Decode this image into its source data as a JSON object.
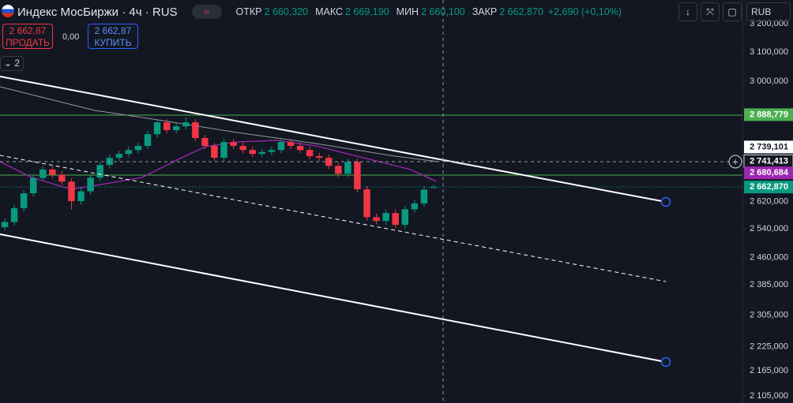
{
  "header": {
    "symbol": "Индекс МосБиржи · 4ч · RUS",
    "ohlc": [
      {
        "label": "ОТКР",
        "value": "2 660,320"
      },
      {
        "label": "МАКС",
        "value": "2 669,190"
      },
      {
        "label": "МИН",
        "value": "2 660,100"
      },
      {
        "label": "ЗАКР",
        "value": "2 662,870"
      }
    ],
    "change": "+2,690 (+0,10%)",
    "currency": "RUB"
  },
  "trade": {
    "sell_price": "2 662,87",
    "sell_label": "ПРОДАТЬ",
    "spread": "0,00",
    "buy_price": "2 662,87",
    "buy_label": "КУПИТЬ"
  },
  "indicators": "2",
  "chart_data": {
    "type": "candlestick",
    "log_scale": true,
    "up_color": "#089981",
    "down_color": "#f23645",
    "ylim": [
      2088,
      3287
    ],
    "yticks": [
      {
        "value": 3200,
        "label": "3 200,000"
      },
      {
        "value": 3100,
        "label": "3 100,000"
      },
      {
        "value": 3000,
        "label": "3 000,000"
      },
      {
        "value": 2620,
        "label": "2 620,000"
      },
      {
        "value": 2540,
        "label": "2 540,000"
      },
      {
        "value": 2460,
        "label": "2 460,000"
      },
      {
        "value": 2385,
        "label": "2 385,000"
      },
      {
        "value": 2305,
        "label": "2 305,000"
      },
      {
        "value": 2225,
        "label": "2 225,000"
      },
      {
        "value": 2165,
        "label": "2 165,000"
      },
      {
        "value": 2105,
        "label": "2 105,000"
      }
    ],
    "price_labels": [
      {
        "value": 2888.779,
        "label": "2 888,779",
        "color": "#4caf50"
      },
      {
        "value": 2739.101,
        "label": "2 739,101",
        "color": "#ffffff"
      },
      {
        "value": 2741.413,
        "label": "2 741,413",
        "color": "#131722"
      },
      {
        "value": 2680.684,
        "label": "2 680,684",
        "color": "#9c27b0"
      },
      {
        "value": 2662.87,
        "label": "2 662,870",
        "color": "#089981"
      }
    ],
    "candles": [
      [
        2545,
        2570,
        2535,
        2560
      ],
      [
        2560,
        2610,
        2550,
        2600
      ],
      [
        2600,
        2654,
        2590,
        2644
      ],
      [
        2644,
        2700,
        2634,
        2690
      ],
      [
        2690,
        2726,
        2680,
        2716
      ],
      [
        2716,
        2726,
        2690,
        2700
      ],
      [
        2700,
        2710,
        2669,
        2679
      ],
      [
        2679,
        2689,
        2596,
        2621
      ],
      [
        2621,
        2660,
        2611,
        2650
      ],
      [
        2650,
        2701,
        2640,
        2691
      ],
      [
        2691,
        2740,
        2681,
        2730
      ],
      [
        2730,
        2762,
        2720,
        2752
      ],
      [
        2752,
        2774,
        2742,
        2764
      ],
      [
        2764,
        2786,
        2754,
        2776
      ],
      [
        2776,
        2799,
        2766,
        2789
      ],
      [
        2789,
        2836,
        2779,
        2826
      ],
      [
        2826,
        2874,
        2816,
        2864
      ],
      [
        2864,
        2874,
        2829,
        2839
      ],
      [
        2839,
        2861,
        2829,
        2851
      ],
      [
        2851,
        2880,
        2841,
        2864
      ],
      [
        2864,
        2874,
        2804,
        2814
      ],
      [
        2814,
        2824,
        2779,
        2789
      ],
      [
        2789,
        2799,
        2742,
        2752
      ],
      [
        2752,
        2811,
        2742,
        2801
      ],
      [
        2801,
        2811,
        2779,
        2789
      ],
      [
        2789,
        2799,
        2766,
        2776
      ],
      [
        2776,
        2786,
        2754,
        2764
      ],
      [
        2764,
        2780,
        2754,
        2770
      ],
      [
        2770,
        2786,
        2760,
        2776
      ],
      [
        2776,
        2811,
        2766,
        2801
      ],
      [
        2801,
        2811,
        2779,
        2789
      ],
      [
        2789,
        2799,
        2766,
        2776
      ],
      [
        2776,
        2786,
        2747,
        2757
      ],
      [
        2757,
        2767,
        2742,
        2752
      ],
      [
        2752,
        2762,
        2717,
        2727
      ],
      [
        2727,
        2737,
        2693,
        2703
      ],
      [
        2703,
        2749,
        2693,
        2739
      ],
      [
        2739,
        2749,
        2646,
        2656
      ],
      [
        2656,
        2666,
        2564,
        2574
      ],
      [
        2574,
        2584,
        2553,
        2563
      ],
      [
        2563,
        2596,
        2553,
        2586
      ],
      [
        2586,
        2596,
        2542,
        2552
      ],
      [
        2552,
        2607,
        2542,
        2597
      ],
      [
        2597,
        2624,
        2587,
        2614
      ],
      [
        2614,
        2665,
        2604,
        2655
      ],
      [
        2660.32,
        2669.19,
        2660.1,
        2662.87
      ]
    ]
  }
}
